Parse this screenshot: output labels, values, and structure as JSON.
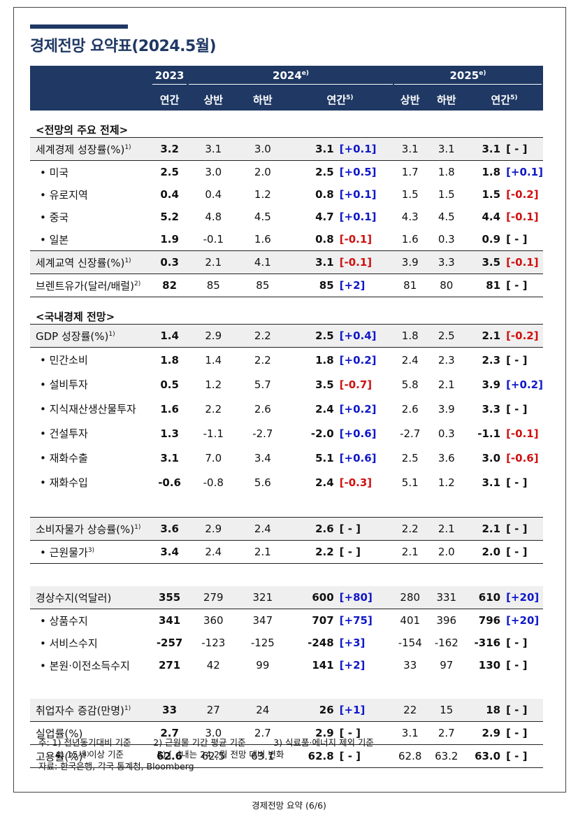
{
  "title": "경제전망 요약표(2024.5월)",
  "header": {
    "y2023": "2023",
    "y2024": "2024",
    "y2024_sup": "e)",
    "y2025": "2025",
    "y2025_sup": "e)",
    "annual": "연간",
    "h1": "상반",
    "h2": "하반",
    "annual5": "연간",
    "annual5_sup": "5)"
  },
  "sections": {
    "premise": "<전망의 주요 전제>",
    "domestic": "<국내경제 전망>"
  },
  "rows": [
    {
      "label": "세계경제 성장률(%)",
      "sup": "1)",
      "sub": false,
      "v": [
        "3.2",
        "3.1",
        "3.0",
        "3.1",
        "[+0.1]",
        "3.1",
        "3.1",
        "3.1",
        "[ - ]"
      ],
      "c1": "blue",
      "c2": "blk"
    },
    {
      "label": "미국",
      "sub": true,
      "v": [
        "2.5",
        "3.0",
        "2.0",
        "2.5",
        "[+0.5]",
        "1.7",
        "1.8",
        "1.8",
        "[+0.1]"
      ],
      "c1": "blue",
      "c2": "blue"
    },
    {
      "label": "유로지역",
      "sub": true,
      "v": [
        "0.4",
        "0.4",
        "1.2",
        "0.8",
        "[+0.1]",
        "1.5",
        "1.5",
        "1.5",
        "[-0.2]"
      ],
      "c1": "blue",
      "c2": "red"
    },
    {
      "label": "중국",
      "sub": true,
      "v": [
        "5.2",
        "4.8",
        "4.5",
        "4.7",
        "[+0.1]",
        "4.3",
        "4.5",
        "4.4",
        "[-0.1]"
      ],
      "c1": "blue",
      "c2": "red"
    },
    {
      "label": "일본",
      "sub": true,
      "v": [
        "1.9",
        "-0.1",
        "1.6",
        "0.8",
        "[-0.1]",
        "1.6",
        "0.3",
        "0.9",
        "[ - ]"
      ],
      "c1": "red",
      "c2": "blk"
    },
    {
      "label": "세계교역 신장률(%)",
      "sup": "1)",
      "sub": false,
      "v": [
        "0.3",
        "2.1",
        "4.1",
        "3.1",
        "[-0.1]",
        "3.9",
        "3.3",
        "3.5",
        "[-0.1]"
      ],
      "c1": "red",
      "c2": "red"
    },
    {
      "label": "브렌트유가(달러/배럴)",
      "sup": "2)",
      "sub": false,
      "v": [
        "82",
        "85",
        "85",
        "85",
        "[+2]",
        "81",
        "80",
        "81",
        "[ - ]"
      ],
      "c1": "blue",
      "c2": "blk"
    },
    {
      "label": "GDP 성장률(%)",
      "sup": "1)",
      "sub": false,
      "v": [
        "1.4",
        "2.9",
        "2.2",
        "2.5",
        "[+0.4]",
        "1.8",
        "2.5",
        "2.1",
        "[-0.2]"
      ],
      "c1": "blue",
      "c2": "red"
    },
    {
      "label": "민간소비",
      "sub": true,
      "v": [
        "1.8",
        "1.4",
        "2.2",
        "1.8",
        "[+0.2]",
        "2.4",
        "2.3",
        "2.3",
        "[ - ]"
      ],
      "c1": "blue",
      "c2": "blk"
    },
    {
      "label": "설비투자",
      "sub": true,
      "v": [
        "0.5",
        "1.2",
        "5.7",
        "3.5",
        "[-0.7]",
        "5.8",
        "2.1",
        "3.9",
        "[+0.2]"
      ],
      "c1": "red",
      "c2": "blue"
    },
    {
      "label": "지식재산생산물투자",
      "sub": true,
      "v": [
        "1.6",
        "2.2",
        "2.6",
        "2.4",
        "[+0.2]",
        "2.6",
        "3.9",
        "3.3",
        "[ - ]"
      ],
      "c1": "blue",
      "c2": "blk"
    },
    {
      "label": "건설투자",
      "sub": true,
      "v": [
        "1.3",
        "-1.1",
        "-2.7",
        "-2.0",
        "[+0.6]",
        "-2.7",
        "0.3",
        "-1.1",
        "[-0.1]"
      ],
      "c1": "blue",
      "c2": "red"
    },
    {
      "label": "재화수출",
      "sub": true,
      "v": [
        "3.1",
        "7.0",
        "3.4",
        "5.1",
        "[+0.6]",
        "2.5",
        "3.6",
        "3.0",
        "[-0.6]"
      ],
      "c1": "blue",
      "c2": "red"
    },
    {
      "label": "재화수입",
      "sub": true,
      "v": [
        "-0.6",
        "-0.8",
        "5.6",
        "2.4",
        "[-0.3]",
        "5.1",
        "1.2",
        "3.1",
        "[ - ]"
      ],
      "c1": "red",
      "c2": "blk"
    },
    {
      "label": "소비자물가 상승률(%)",
      "sup": "1)",
      "sub": false,
      "v": [
        "3.6",
        "2.9",
        "2.4",
        "2.6",
        "[ - ]",
        "2.2",
        "2.1",
        "2.1",
        "[ - ]"
      ],
      "c1": "blk",
      "c2": "blk"
    },
    {
      "label": "근원물가",
      "sup": "3)",
      "sub": true,
      "v": [
        "3.4",
        "2.4",
        "2.1",
        "2.2",
        "[ - ]",
        "2.1",
        "2.0",
        "2.0",
        "[ - ]"
      ],
      "c1": "blk",
      "c2": "blk"
    },
    {
      "label": "경상수지(억달러)",
      "sub": false,
      "v": [
        "355",
        "279",
        "321",
        "600",
        "[+80]",
        "280",
        "331",
        "610",
        "[+20]"
      ],
      "c1": "blue",
      "c2": "blue"
    },
    {
      "label": "상품수지",
      "sub": true,
      "v": [
        "341",
        "360",
        "347",
        "707",
        "[+75]",
        "401",
        "396",
        "796",
        "[+20]"
      ],
      "c1": "blue",
      "c2": "blue"
    },
    {
      "label": "서비스수지",
      "sub": true,
      "v": [
        "-257",
        "-123",
        "-125",
        "-248",
        "[+3]",
        "-154",
        "-162",
        "-316",
        "[ - ]"
      ],
      "c1": "blue",
      "c2": "blk"
    },
    {
      "label": "본원·이전소득수지",
      "sub": true,
      "v": [
        "271",
        "42",
        "99",
        "141",
        "[+2]",
        "33",
        "97",
        "130",
        "[ - ]"
      ],
      "c1": "blue",
      "c2": "blk"
    },
    {
      "label": "취업자수 증감(만명)",
      "sup": "1)",
      "sub": false,
      "v": [
        "33",
        "27",
        "24",
        "26",
        "[+1]",
        "22",
        "15",
        "18",
        "[ - ]"
      ],
      "c1": "blue",
      "c2": "blk"
    },
    {
      "label": "실업률(%)",
      "sub": false,
      "v": [
        "2.7",
        "3.0",
        "2.7",
        "2.9",
        "[ - ]",
        "3.1",
        "2.7",
        "2.9",
        "[ - ]"
      ],
      "c1": "blk",
      "c2": "blk"
    },
    {
      "label": "고용률(%)",
      "sup": "4)",
      "sub": false,
      "v": [
        "62.6",
        "62.5",
        "63.1",
        "62.8",
        "[ - ]",
        "62.8",
        "63.2",
        "63.0",
        "[ - ]"
      ],
      "c1": "blk",
      "c2": "blk"
    }
  ],
  "notes": {
    "line1": "주: 1) 전년동기대비 기준        2) 근원물 기간 평균 기준          3) 식료품·에너지 제외 기준",
    "line2": "      4) 15세 이상 기준            5) [  ]내는 24.2월 전망 대비 변화",
    "source": "자료: 한국은행, 각국 통계청, Bloomberg"
  },
  "footer": "경제전망 요약 (6/6)"
}
